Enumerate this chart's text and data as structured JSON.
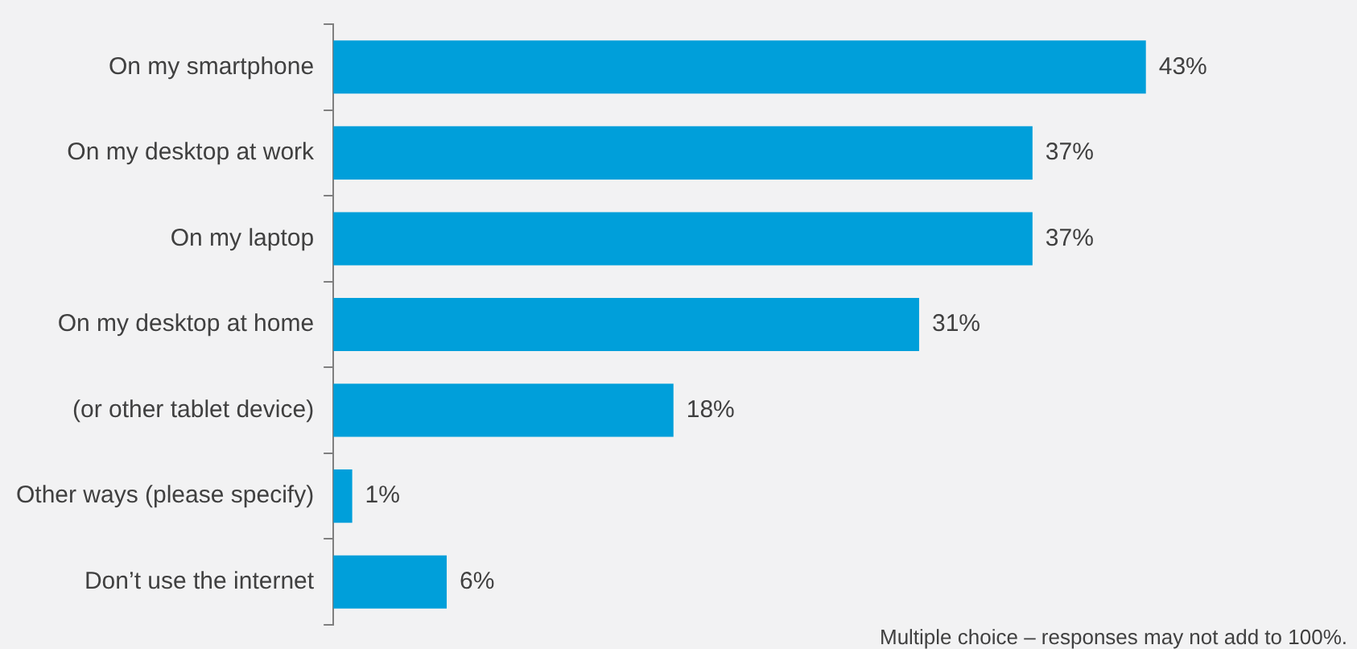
{
  "chart_data": {
    "type": "bar",
    "orientation": "horizontal",
    "categories": [
      "On my smartphone",
      "On my desktop at work",
      "On my laptop",
      "On my desktop at home",
      "(or other tablet device)",
      "Other ways (please specify)",
      "Don’t use the internet"
    ],
    "values": [
      43,
      37,
      37,
      31,
      18,
      1,
      6
    ],
    "value_labels": [
      "43%",
      "37%",
      "37%",
      "31%",
      "18%",
      "1%",
      "6%"
    ],
    "color": "#009fda",
    "legend": false,
    "annotations": [
      "Multiple choice – responses may not add to 100%."
    ]
  }
}
